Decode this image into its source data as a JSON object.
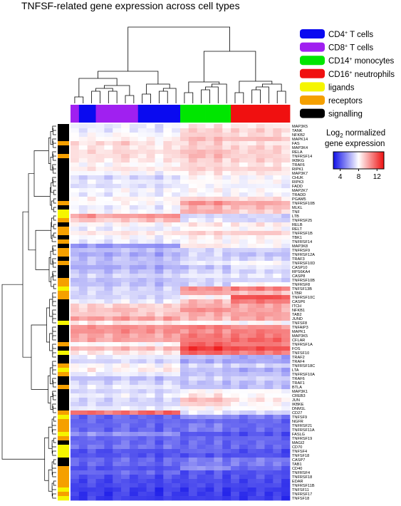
{
  "chart_data": {
    "type": "heatmap",
    "title": "TNFSF-related gene expression across cell types",
    "legend": {
      "placement": "top-right",
      "entries": [
        {
          "key": "cd4",
          "base": "CD4",
          "sup": "+",
          "rest": " T cells",
          "color": "#0a0af0"
        },
        {
          "key": "cd8",
          "base": "CD8",
          "sup": "+",
          "rest": " T cells",
          "color": "#a020f0"
        },
        {
          "key": "cd14",
          "base": "CD14",
          "sup": "+",
          "rest": " monocytes",
          "color": "#00e600"
        },
        {
          "key": "cd16",
          "base": "CD16",
          "sup": "+",
          "rest": " neutrophils",
          "color": "#f01010"
        },
        {
          "key": "ligand",
          "base": "ligands",
          "sup": "",
          "rest": "",
          "color": "#f5f500"
        },
        {
          "key": "receptor",
          "base": "receptors",
          "sup": "",
          "rest": "",
          "color": "#f5a000"
        },
        {
          "key": "signalling",
          "base": "signalling",
          "sup": "",
          "rest": "",
          "color": "#000000"
        }
      ]
    },
    "color_scale": {
      "title_prefix": "Log",
      "title_sub": "2",
      "title_suffix": " normalized",
      "title_line2": "gene expression",
      "ticks": [
        4,
        8,
        12
      ],
      "range": [
        2.5,
        13.5
      ],
      "colors": {
        "low": "#1010e8",
        "mid": "#ffffff",
        "high": "#ee1010"
      }
    },
    "columns": {
      "cell_type_order": [
        "cd8",
        "cd4",
        "cd4",
        "cd8",
        "cd8",
        "cd8",
        "cd8",
        "cd8",
        "cd4",
        "cd4",
        "cd4",
        "cd4",
        "cd4",
        "cd14",
        "cd14",
        "cd14",
        "cd14",
        "cd14",
        "cd14",
        "cd16",
        "cd16",
        "cd16",
        "cd16",
        "cd16",
        "cd16",
        "cd16"
      ],
      "base_offsets": [
        0.1,
        -0.2,
        0.3,
        0.0,
        -0.3,
        0.2,
        0.4,
        -0.1,
        0.0,
        0.2,
        -0.4,
        0.3,
        0.1,
        -0.2,
        0.3,
        0.1,
        -0.1,
        0.4,
        -0.3,
        0.2,
        -0.2,
        0.0,
        0.3,
        -0.1,
        0.2,
        -0.3
      ]
    },
    "rows": [
      {
        "gene": "MAP3K5",
        "category": "signalling",
        "values": [
          7.5,
          7.5,
          8.5,
          8.5
        ]
      },
      {
        "gene": "TANK",
        "category": "signalling",
        "values": [
          7.5,
          7.5,
          9.0,
          9.0
        ]
      },
      {
        "gene": "NFKB2",
        "category": "signalling",
        "values": [
          8.0,
          7.8,
          9.0,
          8.8
        ]
      },
      {
        "gene": "MAPK14",
        "category": "signalling",
        "values": [
          8.2,
          8.2,
          9.5,
          9.5
        ]
      },
      {
        "gene": "FAS",
        "category": "receptor",
        "values": [
          9.0,
          8.5,
          9.0,
          8.5
        ]
      },
      {
        "gene": "MAP3K4",
        "category": "signalling",
        "values": [
          8.5,
          8.5,
          9.0,
          9.0
        ]
      },
      {
        "gene": "RELA",
        "category": "signalling",
        "values": [
          8.8,
          8.8,
          9.5,
          9.0
        ]
      },
      {
        "gene": "TNFRSF14",
        "category": "receptor",
        "values": [
          8.8,
          8.5,
          9.5,
          9.0
        ]
      },
      {
        "gene": "IKBKG",
        "category": "signalling",
        "values": [
          8.5,
          8.5,
          9.0,
          9.0
        ]
      },
      {
        "gene": "TRAF6",
        "category": "signalling",
        "values": [
          8.0,
          8.0,
          8.8,
          8.5
        ]
      },
      {
        "gene": "RIPK1",
        "category": "signalling",
        "values": [
          8.5,
          8.5,
          9.0,
          9.0
        ]
      },
      {
        "gene": "MAP3K7",
        "category": "signalling",
        "values": [
          7.8,
          7.8,
          8.5,
          8.5
        ]
      },
      {
        "gene": "CHUK",
        "category": "signalling",
        "values": [
          7.0,
          7.0,
          8.0,
          7.8
        ]
      },
      {
        "gene": "RIPK3",
        "category": "signalling",
        "values": [
          7.5,
          7.5,
          8.0,
          8.0
        ]
      },
      {
        "gene": "FADD",
        "category": "signalling",
        "values": [
          7.2,
          7.2,
          7.8,
          7.6
        ]
      },
      {
        "gene": "MAP2K7",
        "category": "signalling",
        "values": [
          7.8,
          7.8,
          8.0,
          8.0
        ]
      },
      {
        "gene": "TRADD",
        "category": "signalling",
        "values": [
          7.5,
          7.5,
          7.8,
          7.8
        ]
      },
      {
        "gene": "PGAM5",
        "category": "signalling",
        "values": [
          8.2,
          8.2,
          9.0,
          8.8
        ]
      },
      {
        "gene": "TNFRSF10B",
        "category": "receptor",
        "values": [
          8.0,
          8.0,
          10.5,
          10.0
        ]
      },
      {
        "gene": "MLKL",
        "category": "signalling",
        "values": [
          7.5,
          7.5,
          9.5,
          9.5
        ]
      },
      {
        "gene": "TNF",
        "category": "ligand",
        "values": [
          7.8,
          7.8,
          9.8,
          9.0
        ]
      },
      {
        "gene": "LTB",
        "category": "ligand",
        "values": [
          10.0,
          10.5,
          7.0,
          7.0
        ]
      },
      {
        "gene": "TNFRSF25",
        "category": "receptor",
        "values": [
          9.0,
          9.5,
          7.5,
          7.0
        ]
      },
      {
        "gene": "RELB",
        "category": "signalling",
        "values": [
          8.0,
          8.0,
          8.5,
          8.5
        ]
      },
      {
        "gene": "RELT",
        "category": "receptor",
        "values": [
          7.5,
          7.5,
          8.0,
          8.0
        ]
      },
      {
        "gene": "TNFRSF1B",
        "category": "receptor",
        "values": [
          8.5,
          8.5,
          9.0,
          9.2
        ]
      },
      {
        "gene": "TBK1",
        "category": "signalling",
        "values": [
          7.8,
          7.8,
          8.2,
          8.2
        ]
      },
      {
        "gene": "TNFRSF14",
        "category": "receptor",
        "values": [
          7.5,
          7.5,
          8.0,
          8.0
        ]
      },
      {
        "gene": "MAP3K8",
        "category": "signalling",
        "values": [
          5.5,
          5.5,
          8.5,
          8.0
        ]
      },
      {
        "gene": "TNFRSF9",
        "category": "receptor",
        "values": [
          6.5,
          6.5,
          7.0,
          7.0
        ]
      },
      {
        "gene": "TNFRSF12A",
        "category": "receptor",
        "values": [
          6.0,
          6.0,
          7.0,
          6.5
        ]
      },
      {
        "gene": "TRAF3",
        "category": "signalling",
        "values": [
          6.5,
          6.5,
          7.0,
          7.0
        ]
      },
      {
        "gene": "TNFRSF10D",
        "category": "receptor",
        "values": [
          6.5,
          6.5,
          7.5,
          8.0
        ]
      },
      {
        "gene": "CASP10",
        "category": "signalling",
        "values": [
          6.0,
          6.0,
          6.5,
          7.5
        ]
      },
      {
        "gene": "RPS6KA4",
        "category": "signalling",
        "values": [
          6.5,
          6.5,
          7.0,
          7.0
        ]
      },
      {
        "gene": "CASP8",
        "category": "signalling",
        "values": [
          7.0,
          7.0,
          7.5,
          7.5
        ]
      },
      {
        "gene": "TNFRSF10B",
        "category": "receptor",
        "values": [
          6.5,
          6.5,
          7.0,
          7.0
        ]
      },
      {
        "gene": "TNFRSF8",
        "category": "receptor",
        "values": [
          6.5,
          6.5,
          7.0,
          8.0
        ]
      },
      {
        "gene": "TNFSF13B",
        "category": "ligand",
        "values": [
          7.0,
          7.0,
          10.5,
          11.0
        ]
      },
      {
        "gene": "LTBR",
        "category": "receptor",
        "values": [
          7.0,
          7.0,
          10.0,
          9.5
        ]
      },
      {
        "gene": "TNFRSF10C",
        "category": "receptor",
        "values": [
          7.0,
          7.0,
          8.0,
          12.0
        ]
      },
      {
        "gene": "CASP6",
        "category": "signalling",
        "values": [
          7.5,
          7.5,
          9.5,
          11.0
        ]
      },
      {
        "gene": "ITCH",
        "category": "signalling",
        "values": [
          9.0,
          9.0,
          9.8,
          10.0
        ]
      },
      {
        "gene": "NFKB1",
        "category": "signalling",
        "values": [
          9.5,
          9.0,
          10.5,
          10.0
        ]
      },
      {
        "gene": "TAB2",
        "category": "signalling",
        "values": [
          9.2,
          9.2,
          9.8,
          10.2
        ]
      },
      {
        "gene": "JUND",
        "category": "signalling",
        "values": [
          10.2,
          10.2,
          9.5,
          10.0
        ]
      },
      {
        "gene": "TNFSF8",
        "category": "ligand",
        "values": [
          8.5,
          8.5,
          8.0,
          8.0
        ]
      },
      {
        "gene": "TNFAIP3",
        "category": "signalling",
        "values": [
          10.5,
          10.5,
          11.0,
          10.5
        ]
      },
      {
        "gene": "MAPK1",
        "category": "signalling",
        "values": [
          10.5,
          10.5,
          10.5,
          11.0
        ]
      },
      {
        "gene": "MAP3K5",
        "category": "signalling",
        "values": [
          10.0,
          10.0,
          11.0,
          11.0
        ]
      },
      {
        "gene": "CFLAR",
        "category": "signalling",
        "values": [
          10.0,
          10.0,
          11.0,
          11.5
        ]
      },
      {
        "gene": "TNFRSF1A",
        "category": "receptor",
        "values": [
          8.0,
          8.0,
          11.5,
          11.0
        ]
      },
      {
        "gene": "FOS",
        "category": "signalling",
        "values": [
          9.5,
          9.5,
          12.5,
          12.0
        ]
      },
      {
        "gene": "TNFSF10",
        "category": "ligand",
        "values": [
          8.5,
          8.5,
          11.5,
          11.0
        ]
      },
      {
        "gene": "TRAF2",
        "category": "signalling",
        "values": [
          7.5,
          7.5,
          6.5,
          6.0
        ]
      },
      {
        "gene": "TRAF4",
        "category": "signalling",
        "values": [
          7.0,
          7.0,
          6.0,
          6.0
        ]
      },
      {
        "gene": "TNFRSF18C",
        "category": "receptor",
        "values": [
          8.0,
          8.0,
          7.0,
          7.0
        ]
      },
      {
        "gene": "LTA",
        "category": "ligand",
        "values": [
          8.0,
          8.5,
          6.5,
          6.0
        ]
      },
      {
        "gene": "TNFRSF10A",
        "category": "receptor",
        "values": [
          7.5,
          7.5,
          6.5,
          6.5
        ]
      },
      {
        "gene": "TRAF6",
        "category": "signalling",
        "values": [
          6.5,
          6.5,
          7.0,
          7.0
        ]
      },
      {
        "gene": "TRAF1",
        "category": "signalling",
        "values": [
          7.0,
          7.0,
          6.5,
          6.5
        ]
      },
      {
        "gene": "BTLA",
        "category": "receptor",
        "values": [
          7.5,
          7.5,
          6.5,
          6.5
        ]
      },
      {
        "gene": "MAP3K1",
        "category": "signalling",
        "values": [
          7.0,
          7.0,
          8.0,
          8.0
        ]
      },
      {
        "gene": "CREB3",
        "category": "signalling",
        "values": [
          7.5,
          7.5,
          8.5,
          8.0
        ]
      },
      {
        "gene": "JUN",
        "category": "signalling",
        "values": [
          7.0,
          7.0,
          9.5,
          8.5
        ]
      },
      {
        "gene": "IKBKE",
        "category": "signalling",
        "values": [
          7.0,
          7.0,
          9.0,
          8.0
        ]
      },
      {
        "gene": "DNM1L",
        "category": "signalling",
        "values": [
          7.5,
          7.5,
          8.0,
          8.0
        ]
      },
      {
        "gene": "CD27",
        "category": "receptor",
        "values": [
          11.0,
          11.5,
          7.5,
          7.0
        ]
      },
      {
        "gene": "TNFSF9",
        "category": "ligand",
        "values": [
          4.5,
          4.5,
          5.5,
          5.0
        ]
      },
      {
        "gene": "NGFR",
        "category": "receptor",
        "values": [
          4.5,
          4.5,
          4.5,
          4.5
        ]
      },
      {
        "gene": "TNFRSF21",
        "category": "receptor",
        "values": [
          4.5,
          4.5,
          5.0,
          4.5
        ]
      },
      {
        "gene": "TNFRSF11A",
        "category": "receptor",
        "values": [
          4.5,
          4.5,
          5.0,
          4.5
        ]
      },
      {
        "gene": "FASLG",
        "category": "ligand",
        "values": [
          5.5,
          5.5,
          4.0,
          4.0
        ]
      },
      {
        "gene": "TNFRSF19",
        "category": "receptor",
        "values": [
          4.5,
          4.5,
          4.5,
          4.5
        ]
      },
      {
        "gene": "MAGI2",
        "category": "signalling",
        "values": [
          4.5,
          4.5,
          4.5,
          4.5
        ]
      },
      {
        "gene": "CD70",
        "category": "ligand",
        "values": [
          4.8,
          4.8,
          4.5,
          4.5
        ]
      },
      {
        "gene": "TNFSF4",
        "category": "ligand",
        "values": [
          4.0,
          4.0,
          4.5,
          4.0
        ]
      },
      {
        "gene": "TNFSF18",
        "category": "ligand",
        "values": [
          4.0,
          4.0,
          4.0,
          4.0
        ]
      },
      {
        "gene": "CASP7",
        "category": "signalling",
        "values": [
          4.5,
          4.5,
          5.0,
          5.0
        ]
      },
      {
        "gene": "TAB1",
        "category": "signalling",
        "values": [
          4.5,
          4.5,
          5.0,
          5.0
        ]
      },
      {
        "gene": "CD40",
        "category": "receptor",
        "values": [
          4.0,
          4.0,
          5.5,
          4.5
        ]
      },
      {
        "gene": "TNFRSF4",
        "category": "receptor",
        "values": [
          4.5,
          4.5,
          4.0,
          4.0
        ]
      },
      {
        "gene": "TNFRSF18",
        "category": "receptor",
        "values": [
          4.0,
          4.0,
          4.0,
          4.0
        ]
      },
      {
        "gene": "EDAR",
        "category": "receptor",
        "values": [
          3.8,
          3.8,
          3.8,
          3.8
        ]
      },
      {
        "gene": "TNFRSF11B",
        "category": "receptor",
        "values": [
          3.8,
          3.8,
          3.8,
          3.8
        ]
      },
      {
        "gene": "TNFSF11",
        "category": "ligand",
        "values": [
          3.5,
          3.5,
          3.5,
          3.5
        ]
      },
      {
        "gene": "TNFRSF17",
        "category": "receptor",
        "values": [
          3.5,
          3.5,
          3.5,
          3.5
        ]
      },
      {
        "gene": "TNFSF18",
        "category": "ligand",
        "values": [
          3.5,
          3.5,
          3.5,
          3.5
        ]
      }
    ]
  }
}
